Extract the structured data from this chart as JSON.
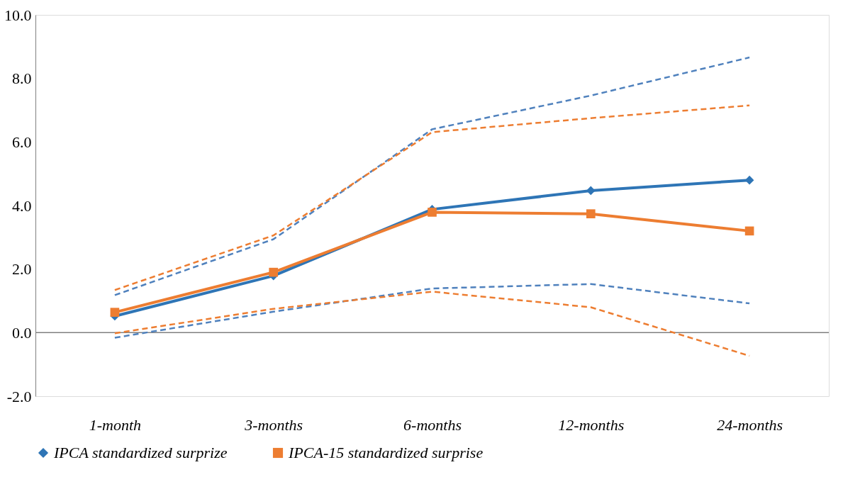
{
  "chart_data": {
    "type": "line",
    "categories": [
      "1-month",
      "3-months",
      "6-months",
      "12-months",
      "24-months"
    ],
    "series": [
      {
        "name": "IPCA standardized surprize",
        "color": "#2e75b6",
        "values": [
          0.52,
          1.79,
          3.88,
          4.47,
          4.8
        ],
        "marker": "diamond",
        "line_style": "solid"
      },
      {
        "name": "IPCA-15 standardized surprise",
        "color": "#ed7d31",
        "values": [
          0.64,
          1.9,
          3.79,
          3.74,
          3.2
        ],
        "marker": "square",
        "line_style": "solid"
      },
      {
        "color": "#4f81bd",
        "values": [
          1.18,
          2.94,
          6.4,
          7.46,
          8.66
        ],
        "line_style": "dashed"
      },
      {
        "color": "#ed7d31",
        "values": [
          1.34,
          3.06,
          6.31,
          6.75,
          7.15
        ],
        "line_style": "dashed"
      },
      {
        "color": "#4f81bd",
        "values": [
          -0.16,
          0.66,
          1.39,
          1.53,
          0.92
        ],
        "line_style": "dashed"
      },
      {
        "color": "#ed7d31",
        "values": [
          -0.02,
          0.75,
          1.29,
          0.8,
          -0.73
        ],
        "line_style": "dashed"
      }
    ],
    "ylim": [
      -2,
      10
    ],
    "yticks": [
      {
        "value": -2,
        "label": "-2.0"
      },
      {
        "value": 0,
        "label": "0.0"
      },
      {
        "value": 2,
        "label": "2.0"
      },
      {
        "value": 4,
        "label": "4.0"
      },
      {
        "value": 6,
        "label": "6.0"
      },
      {
        "value": 8,
        "label": "8.0"
      },
      {
        "value": 10,
        "label": "10.0"
      }
    ],
    "ref_lines": [
      {
        "axis": "y",
        "value": 0,
        "color": "#808080"
      }
    ],
    "grid": false,
    "legend": "bottom"
  }
}
